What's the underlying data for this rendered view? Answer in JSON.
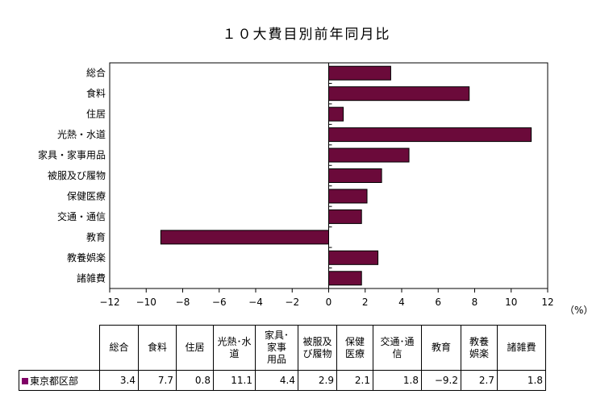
{
  "chart_data": {
    "type": "bar",
    "orientation": "horizontal",
    "title": "１０大費目別前年同月比",
    "unit_label": "（%）",
    "categories": [
      "総合",
      "食料",
      "住居",
      "光熱・水道",
      "家具・家事用品",
      "被服及び履物",
      "保健医療",
      "交通・通信",
      "教育",
      "教養娯楽",
      "諸雑費"
    ],
    "series": [
      {
        "name": "東京都区部",
        "values": [
          3.4,
          7.7,
          0.8,
          11.1,
          4.4,
          2.9,
          2.1,
          1.8,
          -9.2,
          2.7,
          1.8
        ]
      }
    ],
    "xlim": [
      -12,
      12
    ],
    "xticks": [
      -12,
      -10,
      -8,
      -6,
      -4,
      -2,
      0,
      2,
      4,
      6,
      8,
      10,
      12
    ],
    "tick_labels": [
      "−12",
      "−10",
      "−8",
      "−6",
      "−4",
      "−2",
      "0",
      "2",
      "4",
      "6",
      "8",
      "10",
      "12"
    ],
    "grid": false,
    "bar_color": "#6b0a3a"
  },
  "table": {
    "headers": [
      "総合",
      "食料",
      "住居",
      "光熱･水\n道",
      "家具･\n家事\n用品",
      "被服及\nび履物",
      "保健\n医療",
      "交通･通\n信",
      "教育",
      "教養\n娯楽",
      "諸雑費"
    ],
    "row_label": "東京都区部",
    "values": [
      "3.4",
      "7.7",
      "0.8",
      "11.1",
      "4.4",
      "2.9",
      "2.1",
      "1.8",
      "−9.2",
      "2.7",
      "1.8"
    ],
    "swatch_color": "#800066"
  }
}
